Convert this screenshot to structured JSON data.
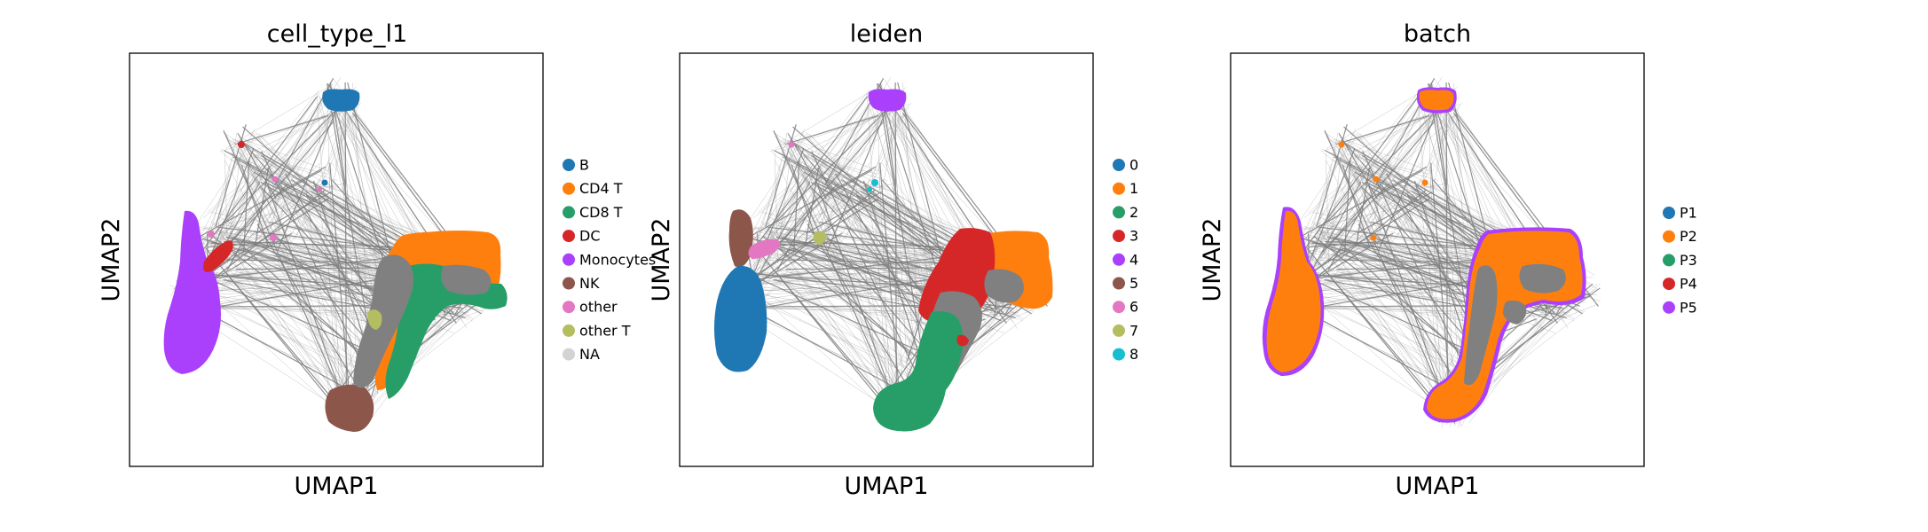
{
  "chart_data": [
    {
      "type": "scatter",
      "title": "cell_type_l1",
      "xlabel": "UMAP1",
      "ylabel": "UMAP2",
      "legend": [
        {
          "label": "B",
          "color": "#1f77b4"
        },
        {
          "label": "CD4 T",
          "color": "#ff7f0e"
        },
        {
          "label": "CD8 T",
          "color": "#279e68"
        },
        {
          "label": "DC",
          "color": "#d62728"
        },
        {
          "label": "Monocytes",
          "color": "#aa40fc"
        },
        {
          "label": "NK",
          "color": "#8c564b"
        },
        {
          "label": "other",
          "color": "#e377c2"
        },
        {
          "label": "other T",
          "color": "#b5bd61"
        },
        {
          "label": "NA",
          "color": "#d3d3d3"
        }
      ],
      "legend_position": "right",
      "grid": false,
      "overlay": "PAGA graph edges (gray)"
    },
    {
      "type": "scatter",
      "title": "leiden",
      "xlabel": "UMAP1",
      "ylabel": "UMAP2",
      "legend": [
        {
          "label": "0",
          "color": "#1f77b4"
        },
        {
          "label": "1",
          "color": "#ff7f0e"
        },
        {
          "label": "2",
          "color": "#279e68"
        },
        {
          "label": "3",
          "color": "#d62728"
        },
        {
          "label": "4",
          "color": "#aa40fc"
        },
        {
          "label": "5",
          "color": "#8c564b"
        },
        {
          "label": "6",
          "color": "#e377c2"
        },
        {
          "label": "7",
          "color": "#b5bd61"
        },
        {
          "label": "8",
          "color": "#17becf"
        }
      ],
      "legend_position": "right",
      "grid": false,
      "overlay": "PAGA graph edges (gray)"
    },
    {
      "type": "scatter",
      "title": "batch",
      "xlabel": "UMAP1",
      "ylabel": "UMAP2",
      "legend": [
        {
          "label": "P1",
          "color": "#1f77b4"
        },
        {
          "label": "P2",
          "color": "#ff7f0e"
        },
        {
          "label": "P3",
          "color": "#279e68"
        },
        {
          "label": "P4",
          "color": "#d62728"
        },
        {
          "label": "P5",
          "color": "#aa40fc"
        }
      ],
      "legend_position": "right",
      "grid": false,
      "overlay": "PAGA graph edges (gray)"
    }
  ]
}
